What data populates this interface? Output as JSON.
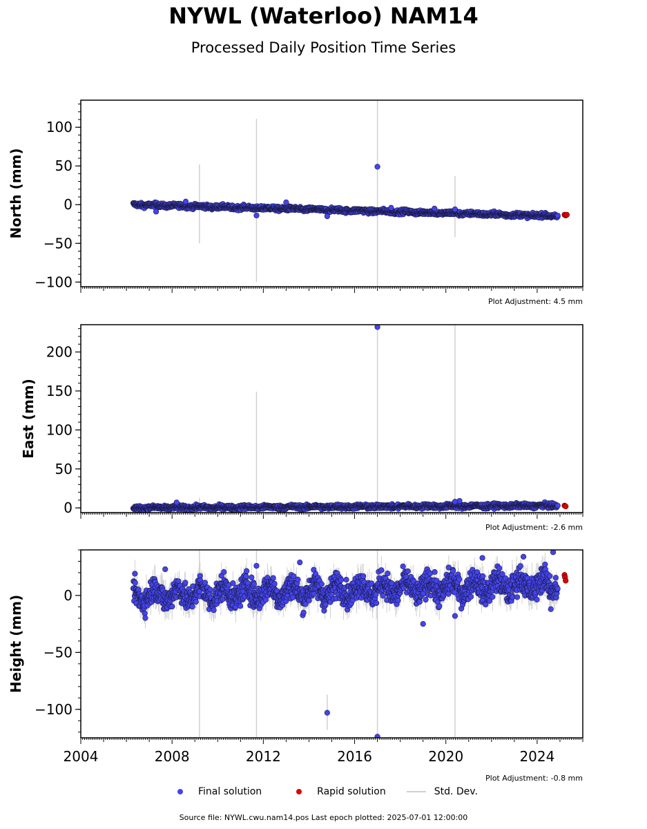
{
  "title": "NYWL (Waterloo) NAM14",
  "subtitle": "Processed Daily Position Time Series",
  "legend": {
    "final": "Final solution",
    "rapid": "Rapid solution",
    "std": "Std. Dev."
  },
  "source": "Source file: NYWL.cwu.nam14.pos  Last epoch plotted: 2025-07-01 12:00:00",
  "colors": {
    "final": "#4444ee",
    "rapid": "#dd0000",
    "std": "#d0d0d0"
  },
  "chart_data": [
    {
      "type": "scatter",
      "ylabel": "North (mm)",
      "adjustment": "Plot Adjustment: 4.5 mm",
      "xlim": [
        2004,
        2026
      ],
      "ylim": [
        -106,
        135
      ],
      "yticks": [
        -100,
        -50,
        0,
        50,
        100
      ],
      "ytick_labels": [
        "−100",
        "−50",
        "0",
        "50",
        "100"
      ],
      "x_tick_labels_shown": false,
      "trend": {
        "x_start": 2006.3,
        "y_start": 0,
        "x_end": 2025.2,
        "y_end": -15,
        "noise_mm": 2,
        "final_end": 2024.9
      },
      "outliers": [
        {
          "x": 2007.3,
          "y": -9
        },
        {
          "x": 2008.6,
          "y": 4
        },
        {
          "x": 2011.7,
          "y": -14
        },
        {
          "x": 2013.0,
          "y": 3
        },
        {
          "x": 2014.8,
          "y": -15
        },
        {
          "x": 2017.0,
          "y": 49
        },
        {
          "x": 2017.6,
          "y": -4
        },
        {
          "x": 2019.5,
          "y": -5
        },
        {
          "x": 2020.4,
          "y": -6
        },
        {
          "x": 2024.9,
          "y": -14
        }
      ],
      "rapid": [
        {
          "x": 2025.2,
          "y": -13
        },
        {
          "x": 2025.25,
          "y": -14
        },
        {
          "x": 2025.3,
          "y": -13
        }
      ],
      "std_bars": [
        {
          "x": 2009.2,
          "lo": -50,
          "hi": 52
        },
        {
          "x": 2011.7,
          "lo": -100,
          "hi": 111
        },
        {
          "x": 2017.0,
          "lo": -106,
          "hi": 135
        },
        {
          "x": 2020.4,
          "lo": -42,
          "hi": 37
        }
      ]
    },
    {
      "type": "scatter",
      "ylabel": "East (mm)",
      "adjustment": "Plot Adjustment: -2.6 mm",
      "xlim": [
        2004,
        2026
      ],
      "ylim": [
        -6,
        235
      ],
      "yticks": [
        0,
        50,
        100,
        150,
        200
      ],
      "ytick_labels": [
        "0",
        "50",
        "100",
        "150",
        "200"
      ],
      "x_tick_labels_shown": false,
      "trend": {
        "x_start": 2006.3,
        "y_start": 0,
        "x_end": 2025.2,
        "y_end": 3,
        "noise_mm": 2,
        "final_end": 2024.9
      },
      "outliers": [
        {
          "x": 2008.2,
          "y": 7
        },
        {
          "x": 2017.0,
          "y": 232
        },
        {
          "x": 2020.6,
          "y": 9
        },
        {
          "x": 2020.4,
          "y": 8
        }
      ],
      "rapid": [
        {
          "x": 2025.2,
          "y": 3
        },
        {
          "x": 2025.25,
          "y": 2
        }
      ],
      "std_bars": [
        {
          "x": 2009.2,
          "lo": -6,
          "hi": 13
        },
        {
          "x": 2011.7,
          "lo": -6,
          "hi": 149
        },
        {
          "x": 2017.0,
          "lo": -6,
          "hi": 235
        },
        {
          "x": 2020.4,
          "lo": -6,
          "hi": 235
        }
      ]
    },
    {
      "type": "scatter",
      "ylabel": "Height (mm)",
      "adjustment": "Plot Adjustment: -0.8 mm",
      "xlim": [
        2004,
        2026
      ],
      "ylim": [
        -125,
        40
      ],
      "yticks": [
        -100,
        -50,
        0
      ],
      "ytick_labels": [
        "−100",
        "−50",
        "0"
      ],
      "xticks": [
        2004,
        2008,
        2012,
        2016,
        2020,
        2024
      ],
      "xtick_labels": [
        "2004",
        "2008",
        "2012",
        "2016",
        "2020",
        "2024"
      ],
      "x_tick_labels_shown": true,
      "trend": {
        "x_start": 2006.3,
        "y_start": 0,
        "x_end": 2025.2,
        "y_end": 10,
        "noise_mm": 8,
        "final_end": 2024.9
      },
      "outliers": [
        {
          "x": 2007.7,
          "y": 23
        },
        {
          "x": 2011.7,
          "y": 26
        },
        {
          "x": 2013.6,
          "y": 29
        },
        {
          "x": 2014.8,
          "y": -103
        },
        {
          "x": 2017.0,
          "y": -124
        },
        {
          "x": 2019.0,
          "y": -25
        },
        {
          "x": 2020.4,
          "y": -18
        },
        {
          "x": 2021.6,
          "y": 33
        },
        {
          "x": 2023.4,
          "y": 34
        },
        {
          "x": 2024.7,
          "y": 38
        },
        {
          "x": 2024.6,
          "y": -12
        }
      ],
      "rapid": [
        {
          "x": 2025.2,
          "y": 18
        },
        {
          "x": 2025.22,
          "y": 16
        },
        {
          "x": 2025.25,
          "y": 13
        }
      ],
      "std_bars": [
        {
          "x": 2009.2,
          "lo": -125,
          "hi": 40
        },
        {
          "x": 2011.7,
          "lo": -125,
          "hi": 40
        },
        {
          "x": 2014.8,
          "lo": -118,
          "hi": -87
        },
        {
          "x": 2017.0,
          "lo": -125,
          "hi": 40
        },
        {
          "x": 2020.4,
          "lo": -125,
          "hi": 30
        }
      ]
    }
  ]
}
